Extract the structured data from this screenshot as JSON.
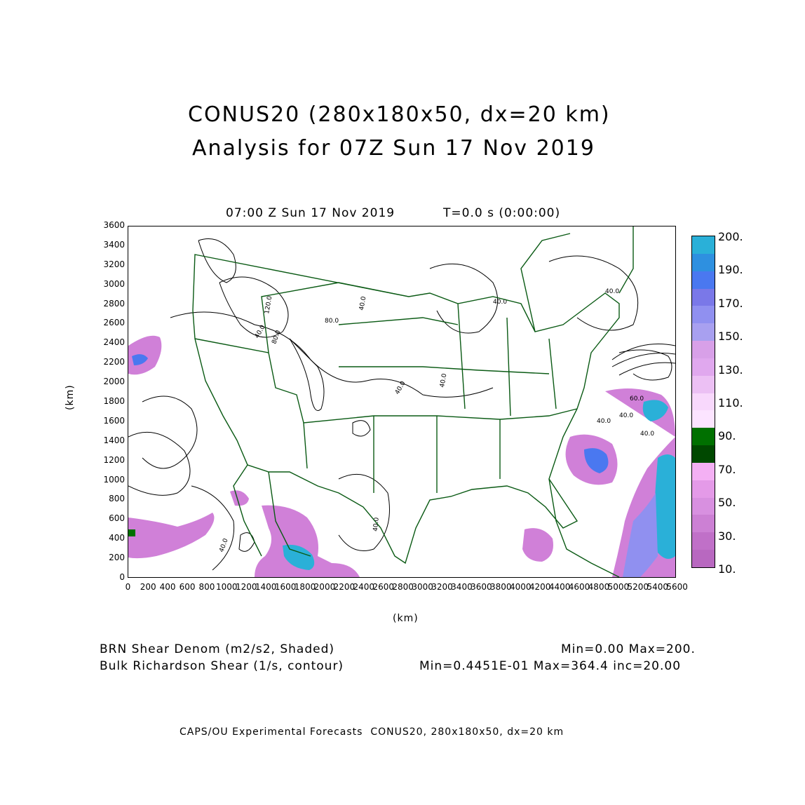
{
  "title": {
    "line1": "CONUS20 (280x180x50, dx=20 km)",
    "line2": "Analysis for 07Z Sun 17 Nov 2019"
  },
  "plot_header": {
    "time": "07:00 Z Sun 17 Nov 2019",
    "t": "T=0.0 s (0:00:00)"
  },
  "axes": {
    "unit": "(km)",
    "x_ticks": [
      "0",
      "200",
      "400",
      "600",
      "800",
      "1000",
      "1200",
      "1400",
      "1600",
      "1800",
      "2000",
      "2200",
      "2400",
      "2600",
      "2800",
      "3000",
      "3200",
      "3400",
      "3600",
      "3800",
      "4000",
      "4200",
      "4400",
      "4600",
      "4800",
      "5000",
      "5200",
      "5400",
      "5600"
    ],
    "y_ticks": [
      "0",
      "200",
      "400",
      "600",
      "800",
      "1000",
      "1200",
      "1400",
      "1600",
      "1800",
      "2000",
      "2200",
      "2400",
      "2600",
      "2800",
      "3000",
      "3200",
      "3400",
      "3600"
    ],
    "x_range": [
      0,
      5600
    ],
    "y_range": [
      0,
      3600
    ]
  },
  "colorbar": {
    "labels": [
      "200.",
      "190.",
      "170.",
      "150.",
      "130.",
      "110.",
      "90.",
      "70.",
      "50.",
      "30.",
      "10."
    ],
    "colors": [
      "#2ab0d8",
      "#2e90e0",
      "#4a78f0",
      "#7a78e8",
      "#9090f0",
      "#a8a0f0",
      "#d8a0e8",
      "#e0a8ee",
      "#ecc0f4",
      "#f8d8fc",
      "#fce4ff",
      "#007000",
      "#004800",
      "#f4b0f4",
      "#e49ae8",
      "#d890e0",
      "#cc80d4",
      "#c070c8",
      "#b868c0"
    ]
  },
  "contour_labels": [
    "120.0",
    "80.0",
    "40.0",
    "80.0",
    "40.0",
    "40.0",
    "40.0",
    "40.0",
    "40.0",
    "40.0",
    "40.0",
    "60.0",
    "40.0",
    "40.0",
    "40.0"
  ],
  "legend": {
    "shaded_name": "BRN Shear Denom (m2/s2, Shaded)",
    "shaded_range": "Min=0.00 Max=200.",
    "contour_name": "Bulk Richardson Shear (1/s, contour)",
    "contour_range": "Min=0.4451E-01 Max=364.4 inc=20.00"
  },
  "footer": "CAPS/OU Experimental Forecasts  CONUS20, 280x180x50, dx=20 km"
}
